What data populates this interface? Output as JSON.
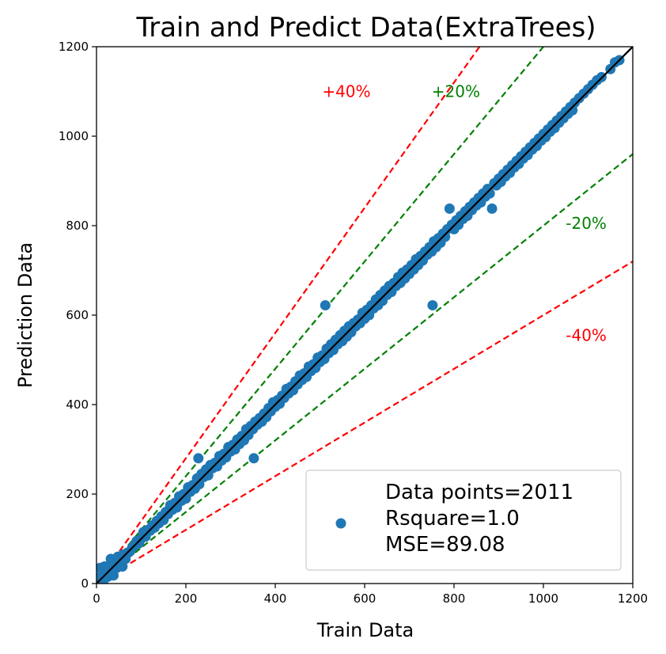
{
  "chart_data": {
    "type": "scatter",
    "title": "Train and Predict Data(ExtraTrees)",
    "xlabel": "Train Data",
    "ylabel": "Prediction Data",
    "xlim": [
      0,
      1200
    ],
    "ylim": [
      0,
      1200
    ],
    "xticks": [
      0,
      200,
      400,
      600,
      800,
      1000,
      1200
    ],
    "yticks": [
      0,
      200,
      400,
      600,
      800,
      1000,
      1200
    ],
    "point_color": "#1f77b4",
    "series": [
      {
        "name": "Data points=2011\nRsquare=1.0\nMSE=89.08",
        "points": [
          [
            5,
            10
          ],
          [
            8,
            35
          ],
          [
            12,
            20
          ],
          [
            15,
            5
          ],
          [
            18,
            38
          ],
          [
            22,
            28
          ],
          [
            25,
            15
          ],
          [
            28,
            40
          ],
          [
            30,
            22
          ],
          [
            32,
            55
          ],
          [
            35,
            30
          ],
          [
            38,
            18
          ],
          [
            40,
            45
          ],
          [
            45,
            35
          ],
          [
            48,
            60
          ],
          [
            50,
            42
          ],
          [
            55,
            50
          ],
          [
            58,
            38
          ],
          [
            60,
            65
          ],
          [
            65,
            55
          ],
          [
            70,
            68
          ],
          [
            75,
            72
          ],
          [
            80,
            80
          ],
          [
            85,
            85
          ],
          [
            90,
            95
          ],
          [
            95,
            90
          ],
          [
            100,
            100
          ],
          [
            105,
            115
          ],
          [
            110,
            105
          ],
          [
            115,
            120
          ],
          [
            120,
            118
          ],
          [
            125,
            130
          ],
          [
            130,
            125
          ],
          [
            135,
            140
          ],
          [
            140,
            135
          ],
          [
            145,
            150
          ],
          [
            150,
            142
          ],
          [
            155,
            160
          ],
          [
            160,
            155
          ],
          [
            165,
            175
          ],
          [
            170,
            165
          ],
          [
            175,
            180
          ],
          [
            180,
            170
          ],
          [
            185,
            195
          ],
          [
            190,
            185
          ],
          [
            195,
            200
          ],
          [
            200,
            190
          ],
          [
            205,
            215
          ],
          [
            210,
            205
          ],
          [
            215,
            220
          ],
          [
            220,
            212
          ],
          [
            225,
            235
          ],
          [
            228,
            280
          ],
          [
            230,
            222
          ],
          [
            235,
            245
          ],
          [
            240,
            238
          ],
          [
            245,
            255
          ],
          [
            250,
            242
          ],
          [
            255,
            265
          ],
          [
            260,
            258
          ],
          [
            265,
            270
          ],
          [
            270,
            262
          ],
          [
            275,
            285
          ],
          [
            280,
            275
          ],
          [
            285,
            290
          ],
          [
            290,
            282
          ],
          [
            295,
            305
          ],
          [
            300,
            295
          ],
          [
            305,
            310
          ],
          [
            310,
            300
          ],
          [
            315,
            322
          ],
          [
            320,
            312
          ],
          [
            325,
            330
          ],
          [
            330,
            320
          ],
          [
            335,
            345
          ],
          [
            340,
            332
          ],
          [
            345,
            352
          ],
          [
            350,
            345
          ],
          [
            352,
            280
          ],
          [
            355,
            362
          ],
          [
            360,
            355
          ],
          [
            365,
            370
          ],
          [
            370,
            362
          ],
          [
            375,
            380
          ],
          [
            380,
            372
          ],
          [
            385,
            392
          ],
          [
            390,
            385
          ],
          [
            395,
            405
          ],
          [
            400,
            395
          ],
          [
            405,
            410
          ],
          [
            410,
            402
          ],
          [
            415,
            420
          ],
          [
            420,
            415
          ],
          [
            425,
            435
          ],
          [
            430,
            425
          ],
          [
            435,
            440
          ],
          [
            440,
            432
          ],
          [
            445,
            452
          ],
          [
            450,
            445
          ],
          [
            455,
            465
          ],
          [
            460,
            455
          ],
          [
            465,
            470
          ],
          [
            470,
            462
          ],
          [
            475,
            485
          ],
          [
            480,
            475
          ],
          [
            485,
            490
          ],
          [
            490,
            482
          ],
          [
            495,
            505
          ],
          [
            500,
            495
          ],
          [
            505,
            510
          ],
          [
            510,
            502
          ],
          [
            512,
            622
          ],
          [
            515,
            525
          ],
          [
            520,
            515
          ],
          [
            525,
            535
          ],
          [
            530,
            522
          ],
          [
            535,
            545
          ],
          [
            540,
            535
          ],
          [
            545,
            555
          ],
          [
            550,
            542
          ],
          [
            555,
            565
          ],
          [
            560,
            552
          ],
          [
            565,
            575
          ],
          [
            570,
            562
          ],
          [
            575,
            582
          ],
          [
            580,
            575
          ],
          [
            585,
            590
          ],
          [
            590,
            582
          ],
          [
            595,
            605
          ],
          [
            600,
            592
          ],
          [
            605,
            612
          ],
          [
            610,
            600
          ],
          [
            615,
            622
          ],
          [
            620,
            615
          ],
          [
            625,
            635
          ],
          [
            630,
            622
          ],
          [
            635,
            645
          ],
          [
            640,
            632
          ],
          [
            645,
            655
          ],
          [
            650,
            645
          ],
          [
            655,
            665
          ],
          [
            660,
            652
          ],
          [
            665,
            672
          ],
          [
            670,
            665
          ],
          [
            675,
            685
          ],
          [
            680,
            672
          ],
          [
            685,
            695
          ],
          [
            690,
            682
          ],
          [
            695,
            702
          ],
          [
            700,
            692
          ],
          [
            705,
            712
          ],
          [
            710,
            702
          ],
          [
            715,
            725
          ],
          [
            720,
            712
          ],
          [
            725,
            732
          ],
          [
            730,
            722
          ],
          [
            735,
            742
          ],
          [
            740,
            735
          ],
          [
            745,
            752
          ],
          [
            750,
            742
          ],
          [
            752,
            622
          ],
          [
            755,
            765
          ],
          [
            760,
            752
          ],
          [
            765,
            772
          ],
          [
            770,
            762
          ],
          [
            775,
            782
          ],
          [
            780,
            775
          ],
          [
            785,
            792
          ],
          [
            790,
            838
          ],
          [
            795,
            802
          ],
          [
            800,
            792
          ],
          [
            805,
            812
          ],
          [
            810,
            802
          ],
          [
            815,
            822
          ],
          [
            820,
            815
          ],
          [
            825,
            832
          ],
          [
            830,
            822
          ],
          [
            835,
            842
          ],
          [
            840,
            835
          ],
          [
            845,
            852
          ],
          [
            850,
            845
          ],
          [
            855,
            862
          ],
          [
            860,
            852
          ],
          [
            865,
            872
          ],
          [
            870,
            865
          ],
          [
            875,
            882
          ],
          [
            880,
            872
          ],
          [
            885,
            838
          ],
          [
            890,
            895
          ],
          [
            895,
            890
          ],
          [
            900,
            905
          ],
          [
            905,
            898
          ],
          [
            910,
            915
          ],
          [
            915,
            910
          ],
          [
            920,
            925
          ],
          [
            925,
            918
          ],
          [
            930,
            935
          ],
          [
            935,
            930
          ],
          [
            940,
            945
          ],
          [
            945,
            938
          ],
          [
            950,
            955
          ],
          [
            955,
            950
          ],
          [
            960,
            965
          ],
          [
            965,
            958
          ],
          [
            970,
            975
          ],
          [
            975,
            970
          ],
          [
            980,
            985
          ],
          [
            985,
            978
          ],
          [
            990,
            995
          ],
          [
            995,
            990
          ],
          [
            1000,
            1005
          ],
          [
            1005,
            998
          ],
          [
            1010,
            1015
          ],
          [
            1015,
            1010
          ],
          [
            1020,
            1025
          ],
          [
            1025,
            1018
          ],
          [
            1030,
            1035
          ],
          [
            1035,
            1030
          ],
          [
            1040,
            1045
          ],
          [
            1045,
            1040
          ],
          [
            1050,
            1055
          ],
          [
            1055,
            1050
          ],
          [
            1060,
            1065
          ],
          [
            1065,
            1058
          ],
          [
            1070,
            1075
          ],
          [
            1080,
            1085
          ],
          [
            1090,
            1095
          ],
          [
            1100,
            1105
          ],
          [
            1110,
            1115
          ],
          [
            1120,
            1125
          ],
          [
            1130,
            1132
          ],
          [
            1150,
            1150
          ],
          [
            1160,
            1165
          ],
          [
            1170,
            1170
          ]
        ]
      }
    ],
    "reference_lines": [
      {
        "label": "+40%",
        "slope": 1.4,
        "color": "#ff0000",
        "style": "dashed",
        "label_x": 505,
        "label_y": 1100
      },
      {
        "label": "+20%",
        "slope": 1.2,
        "color": "#008000",
        "style": "dashed",
        "label_x": 750,
        "label_y": 1100
      },
      {
        "label": "-20%",
        "slope": 0.8,
        "color": "#008000",
        "style": "dashed",
        "label_x": 1050,
        "label_y": 805
      },
      {
        "label": "-40%",
        "slope": 0.6,
        "color": "#ff0000",
        "style": "dashed",
        "label_x": 1050,
        "label_y": 555
      },
      {
        "label": "",
        "slope": 1.0,
        "color": "#000000",
        "style": "solid"
      }
    ],
    "legend": {
      "position": "lower-right",
      "lines": [
        "Data points=2011",
        "Rsquare=1.0",
        "MSE=89.08"
      ]
    },
    "grid": false
  }
}
